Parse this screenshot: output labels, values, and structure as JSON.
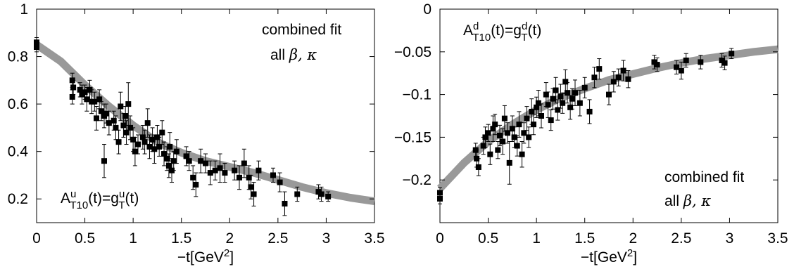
{
  "chart_data": [
    {
      "type": "scatter",
      "xlabel": "−t[GeV",
      "xlabel_sup": "2",
      "xlabel_end": "]",
      "xlim": [
        0,
        3.5
      ],
      "ylim": [
        0.1,
        1.0
      ],
      "x_ticks": [
        0,
        0.5,
        1,
        1.5,
        2,
        2.5,
        3,
        3.5
      ],
      "x_tick_labels": [
        "0",
        "0.5",
        "1",
        "1.5",
        "2",
        "2.5",
        "3",
        "3.5"
      ],
      "y_ticks": [
        0.2,
        0.4,
        0.6,
        0.8,
        1.0
      ],
      "y_tick_labels": [
        "0.2",
        "0.4",
        "0.6",
        "0.8",
        "1"
      ],
      "annotation": {
        "line1": "combined  fit",
        "line2_text": "all ",
        "line2_greek": "β, κ",
        "formula": {
          "A": "A",
          "Asup": "u",
          "Asub": "T10",
          "mid": "(t)=g",
          "gsup": "u",
          "gsub": "T",
          "end": "(t)"
        }
      },
      "fit_band": {
        "x": [
          0,
          0.25,
          0.5,
          0.75,
          1.0,
          1.25,
          1.5,
          1.75,
          2.0,
          2.25,
          2.5,
          2.75,
          3.0,
          3.25,
          3.5
        ],
        "y": [
          0.85,
          0.78,
          0.68,
          0.59,
          0.51,
          0.44,
          0.395,
          0.36,
          0.335,
          0.31,
          0.28,
          0.25,
          0.225,
          0.205,
          0.19
        ],
        "color": "#999999"
      },
      "series": [
        {
          "points": [
            [
              0.0,
              0.86,
              0.02
            ],
            [
              0.0,
              0.84,
              0.02
            ],
            [
              0.37,
              0.7,
              0.03
            ],
            [
              0.37,
              0.63,
              0.03
            ],
            [
              0.38,
              0.67,
              0.03
            ],
            [
              0.45,
              0.66,
              0.03
            ],
            [
              0.47,
              0.64,
              0.04
            ],
            [
              0.5,
              0.65,
              0.03
            ],
            [
              0.52,
              0.62,
              0.05
            ],
            [
              0.55,
              0.66,
              0.04
            ],
            [
              0.57,
              0.61,
              0.05
            ],
            [
              0.6,
              0.61,
              0.04
            ],
            [
              0.62,
              0.54,
              0.05
            ],
            [
              0.65,
              0.62,
              0.04
            ],
            [
              0.67,
              0.57,
              0.04
            ],
            [
              0.7,
              0.36,
              0.07
            ],
            [
              0.7,
              0.55,
              0.05
            ],
            [
              0.72,
              0.56,
              0.04
            ],
            [
              0.75,
              0.52,
              0.05
            ],
            [
              0.8,
              0.53,
              0.04
            ],
            [
              0.82,
              0.5,
              0.05
            ],
            [
              0.85,
              0.44,
              0.05
            ],
            [
              0.87,
              0.59,
              0.06
            ],
            [
              0.9,
              0.51,
              0.05
            ],
            [
              0.92,
              0.55,
              0.04
            ],
            [
              0.93,
              0.48,
              0.05
            ],
            [
              0.95,
              0.6,
              0.09
            ],
            [
              0.97,
              0.5,
              0.05
            ],
            [
              1.0,
              0.45,
              0.05
            ],
            [
              1.02,
              0.4,
              0.06
            ],
            [
              1.05,
              0.43,
              0.04
            ],
            [
              1.1,
              0.46,
              0.05
            ],
            [
              1.12,
              0.44,
              0.05
            ],
            [
              1.15,
              0.52,
              0.06
            ],
            [
              1.17,
              0.42,
              0.05
            ],
            [
              1.2,
              0.45,
              0.05
            ],
            [
              1.22,
              0.41,
              0.06
            ],
            [
              1.25,
              0.46,
              0.05
            ],
            [
              1.27,
              0.42,
              0.04
            ],
            [
              1.3,
              0.48,
              0.05
            ],
            [
              1.32,
              0.39,
              0.05
            ],
            [
              1.35,
              0.37,
              0.05
            ],
            [
              1.37,
              0.34,
              0.05
            ],
            [
              1.38,
              0.42,
              0.06
            ],
            [
              1.4,
              0.32,
              0.05
            ],
            [
              1.42,
              0.36,
              0.04
            ],
            [
              1.45,
              0.4,
              0.05
            ],
            [
              1.55,
              0.38,
              0.04
            ],
            [
              1.58,
              0.36,
              0.04
            ],
            [
              1.62,
              0.29,
              0.05
            ],
            [
              1.65,
              0.26,
              0.05
            ],
            [
              1.7,
              0.36,
              0.05
            ],
            [
              1.75,
              0.35,
              0.04
            ],
            [
              1.8,
              0.31,
              0.05
            ],
            [
              1.85,
              0.32,
              0.04
            ],
            [
              1.9,
              0.33,
              0.06
            ],
            [
              1.95,
              0.31,
              0.04
            ],
            [
              2.05,
              0.32,
              0.04
            ],
            [
              2.1,
              0.29,
              0.05
            ],
            [
              2.15,
              0.35,
              0.06
            ],
            [
              2.2,
              0.29,
              0.05
            ],
            [
              2.22,
              0.25,
              0.05
            ],
            [
              2.25,
              0.22,
              0.05
            ],
            [
              2.3,
              0.32,
              0.04
            ],
            [
              2.45,
              0.3,
              0.03
            ],
            [
              2.52,
              0.27,
              0.04
            ],
            [
              2.57,
              0.18,
              0.05
            ],
            [
              2.7,
              0.22,
              0.03
            ],
            [
              2.92,
              0.23,
              0.03
            ],
            [
              2.95,
              0.22,
              0.03
            ],
            [
              3.02,
              0.21,
              0.02
            ]
          ]
        }
      ]
    },
    {
      "type": "scatter",
      "xlabel": "−t[GeV",
      "xlabel_sup": "2",
      "xlabel_end": "]",
      "xlim": [
        0,
        3.5
      ],
      "ylim": [
        -0.25,
        0.0
      ],
      "x_ticks": [
        0,
        0.5,
        1,
        1.5,
        2,
        2.5,
        3,
        3.5
      ],
      "x_tick_labels": [
        "0",
        "0.5",
        "1",
        "1.5",
        "2",
        "2.5",
        "3",
        "3.5"
      ],
      "y_ticks": [
        -0.2,
        -0.15,
        -0.1,
        -0.05,
        0.0
      ],
      "y_tick_labels": [
        "−0.2",
        "−0.15",
        "−0.1",
        "−0.05",
        "0"
      ],
      "annotation": {
        "line1": "combined  fit",
        "line2_text": "all ",
        "line2_greek": "β, κ",
        "formula": {
          "A": "A",
          "Asup": "d",
          "Asub": "T10",
          "mid": "(t)=g",
          "gsup": "d",
          "gsub": "T",
          "end": "(t)"
        }
      },
      "fit_band": {
        "x": [
          0,
          0.25,
          0.5,
          0.75,
          1.0,
          1.25,
          1.5,
          1.75,
          2.0,
          2.25,
          2.5,
          2.75,
          3.0,
          3.25,
          3.5
        ],
        "y": [
          -0.21,
          -0.18,
          -0.155,
          -0.135,
          -0.118,
          -0.104,
          -0.093,
          -0.083,
          -0.076,
          -0.069,
          -0.063,
          -0.058,
          -0.054,
          -0.05,
          -0.047
        ],
        "color": "#999999"
      },
      "series": [
        {
          "points": [
            [
              0.0,
              -0.215,
              0.006
            ],
            [
              0.0,
              -0.222,
              0.006
            ],
            [
              0.37,
              -0.165,
              0.008
            ],
            [
              0.38,
              -0.175,
              0.01
            ],
            [
              0.4,
              -0.185,
              0.01
            ],
            [
              0.45,
              -0.16,
              0.01
            ],
            [
              0.47,
              -0.15,
              0.012
            ],
            [
              0.5,
              -0.145,
              0.01
            ],
            [
              0.52,
              -0.17,
              0.012
            ],
            [
              0.55,
              -0.14,
              0.015
            ],
            [
              0.57,
              -0.135,
              0.012
            ],
            [
              0.6,
              -0.165,
              0.01
            ],
            [
              0.62,
              -0.148,
              0.012
            ],
            [
              0.65,
              -0.155,
              0.015
            ],
            [
              0.67,
              -0.128,
              0.015
            ],
            [
              0.7,
              -0.145,
              0.012
            ],
            [
              0.72,
              -0.18,
              0.025
            ],
            [
              0.75,
              -0.14,
              0.015
            ],
            [
              0.77,
              -0.15,
              0.012
            ],
            [
              0.8,
              -0.16,
              0.012
            ],
            [
              0.82,
              -0.135,
              0.015
            ],
            [
              0.85,
              -0.17,
              0.015
            ],
            [
              0.87,
              -0.145,
              0.012
            ],
            [
              0.9,
              -0.128,
              0.014
            ],
            [
              0.92,
              -0.15,
              0.012
            ],
            [
              0.95,
              -0.12,
              0.015
            ],
            [
              0.97,
              -0.135,
              0.012
            ],
            [
              1.0,
              -0.115,
              0.012
            ],
            [
              1.02,
              -0.11,
              0.015
            ],
            [
              1.05,
              -0.125,
              0.014
            ],
            [
              1.1,
              -0.1,
              0.014
            ],
            [
              1.12,
              -0.112,
              0.015
            ],
            [
              1.15,
              -0.13,
              0.012
            ],
            [
              1.17,
              -0.105,
              0.012
            ],
            [
              1.2,
              -0.095,
              0.015
            ],
            [
              1.22,
              -0.118,
              0.012
            ],
            [
              1.25,
              -0.102,
              0.014
            ],
            [
              1.27,
              -0.11,
              0.012
            ],
            [
              1.3,
              -0.085,
              0.014
            ],
            [
              1.32,
              -0.098,
              0.012
            ],
            [
              1.35,
              -0.115,
              0.014
            ],
            [
              1.37,
              -0.105,
              0.012
            ],
            [
              1.4,
              -0.098,
              0.015
            ],
            [
              1.45,
              -0.11,
              0.015
            ],
            [
              1.5,
              -0.092,
              0.012
            ],
            [
              1.55,
              -0.12,
              0.014
            ],
            [
              1.6,
              -0.08,
              0.012
            ],
            [
              1.65,
              -0.07,
              0.012
            ],
            [
              1.75,
              -0.1,
              0.012
            ],
            [
              1.8,
              -0.085,
              0.012
            ],
            [
              1.85,
              -0.08,
              0.01
            ],
            [
              1.9,
              -0.072,
              0.012
            ],
            [
              1.95,
              -0.082,
              0.01
            ],
            [
              2.22,
              -0.062,
              0.008
            ],
            [
              2.25,
              -0.065,
              0.008
            ],
            [
              2.45,
              -0.068,
              0.008
            ],
            [
              2.5,
              -0.072,
              0.01
            ],
            [
              2.55,
              -0.06,
              0.008
            ],
            [
              2.7,
              -0.062,
              0.008
            ],
            [
              2.92,
              -0.06,
              0.008
            ],
            [
              2.95,
              -0.063,
              0.008
            ],
            [
              3.02,
              -0.052,
              0.006
            ]
          ]
        }
      ]
    }
  ]
}
